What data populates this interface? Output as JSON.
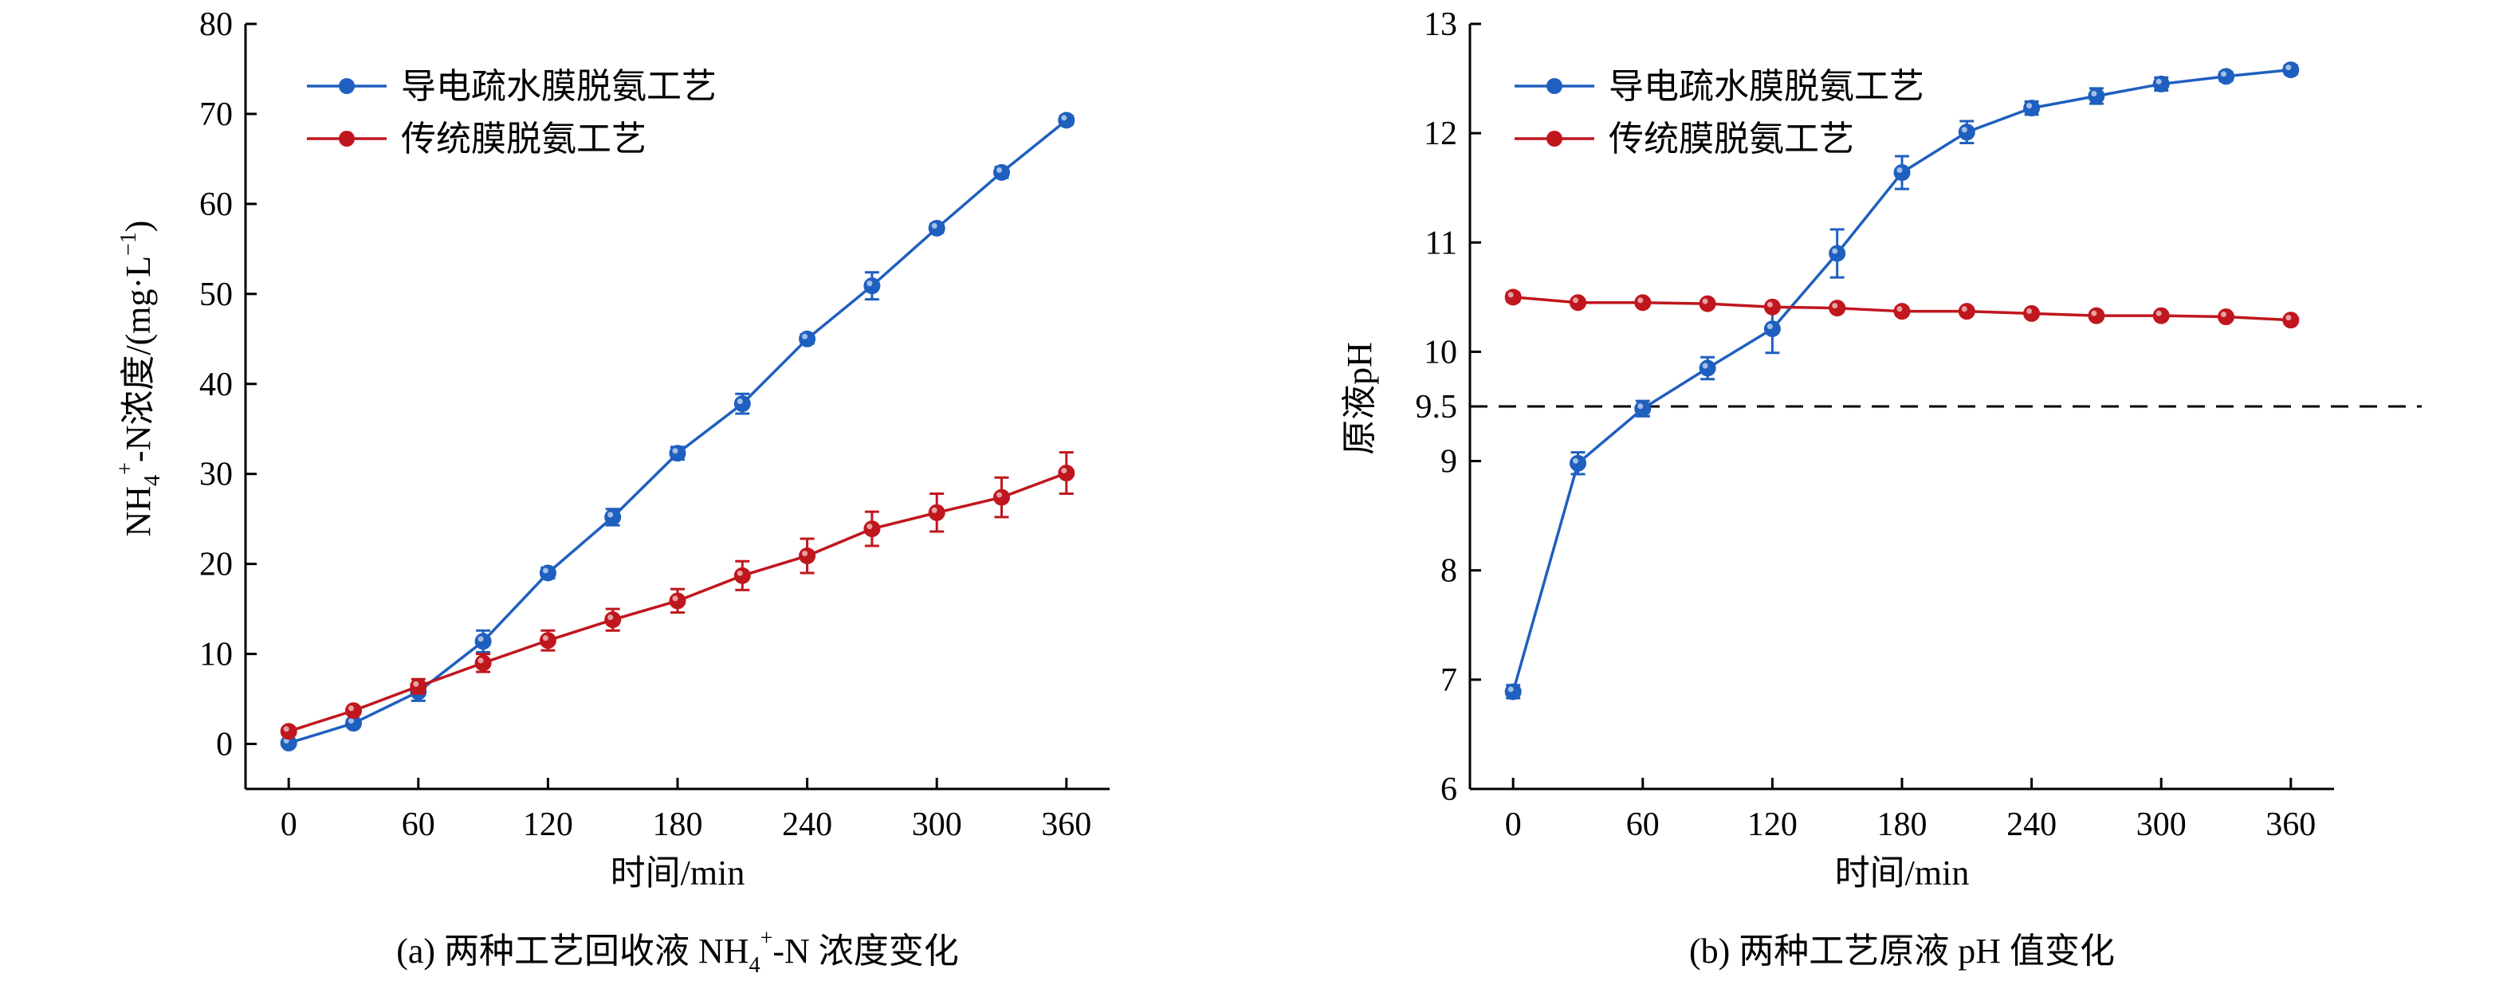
{
  "chart_data": [
    {
      "id": "a",
      "type": "line",
      "caption_prefix": "(a) 两种工艺回收液 NH",
      "caption_sub": "4",
      "caption_sup": "+",
      "caption_suffix": "-N 浓度变化",
      "xlabel": "时间/min",
      "ylabel_main": "NH",
      "ylabel_sub": "4",
      "ylabel_sup": "+",
      "ylabel_tail": "-N浓度/(mg·L",
      "ylabel_unit_sup": "−1",
      "ylabel_end": ")",
      "xlim": [
        -20,
        380
      ],
      "ylim": [
        -5,
        80
      ],
      "xticks": [
        0,
        60,
        120,
        180,
        240,
        300,
        360
      ],
      "xtick_labels": [
        "0",
        "60",
        "120",
        "180",
        "240",
        "300",
        "360"
      ],
      "yticks": [
        0,
        10,
        20,
        30,
        40,
        50,
        60,
        70,
        80
      ],
      "ytick_labels": [
        "0",
        "10",
        "20",
        "30",
        "40",
        "50",
        "60",
        "70",
        "80"
      ],
      "legend_position": "top-left",
      "series": [
        {
          "name": "导电疏水膜脱氨工艺",
          "color": "#1f5fbf",
          "x": [
            0,
            30,
            60,
            90,
            120,
            150,
            180,
            210,
            240,
            270,
            300,
            330,
            360
          ],
          "y": [
            0.1,
            2.3,
            5.8,
            11.4,
            19.0,
            25.2,
            32.3,
            37.8,
            45.0,
            50.9,
            57.3,
            63.5,
            69.3
          ],
          "err": [
            0.3,
            0.4,
            1.0,
            1.2,
            0.6,
            0.9,
            0.7,
            1.1,
            0.5,
            1.5,
            0.5,
            0.6,
            0.5
          ]
        },
        {
          "name": "传统膜脱氨工艺",
          "color": "#c0161e",
          "x": [
            0,
            30,
            60,
            90,
            120,
            150,
            180,
            210,
            240,
            270,
            300,
            330,
            360
          ],
          "y": [
            1.4,
            3.7,
            6.4,
            9.0,
            11.5,
            13.8,
            15.9,
            18.7,
            20.9,
            23.9,
            25.7,
            27.4,
            30.1
          ],
          "err": [
            0.3,
            0.4,
            0.8,
            1.0,
            1.1,
            1.2,
            1.3,
            1.6,
            1.9,
            1.9,
            2.1,
            2.2,
            2.3
          ]
        }
      ]
    },
    {
      "id": "b",
      "type": "line",
      "caption": "(b) 两种工艺原液 pH 值变化",
      "xlabel": "时间/min",
      "ylabel": "原液pH",
      "xlim": [
        -20,
        380
      ],
      "ylim": [
        6,
        13
      ],
      "xticks": [
        0,
        60,
        120,
        180,
        240,
        300,
        360
      ],
      "xtick_labels": [
        "0",
        "60",
        "120",
        "180",
        "240",
        "300",
        "360"
      ],
      "yticks": [
        6,
        7,
        8,
        9,
        9.5,
        10,
        11,
        12,
        13
      ],
      "ytick_labels": [
        "6",
        "7",
        "8",
        "9",
        "9.5",
        "10",
        "11",
        "12",
        "13"
      ],
      "reference_line": {
        "y": 9.5,
        "style": "dashed"
      },
      "legend_position": "top-left",
      "series": [
        {
          "name": "导电疏水膜脱氨工艺",
          "color": "#1f5fbf",
          "x": [
            0,
            30,
            60,
            90,
            120,
            150,
            180,
            210,
            240,
            270,
            300,
            330,
            360
          ],
          "y": [
            6.89,
            8.98,
            9.48,
            9.85,
            10.21,
            10.9,
            11.64,
            12.01,
            12.23,
            12.34,
            12.45,
            12.52,
            12.58
          ],
          "err": [
            0.06,
            0.1,
            0.07,
            0.1,
            0.22,
            0.22,
            0.15,
            0.1,
            0.06,
            0.07,
            0.06,
            0.04,
            0.04
          ]
        },
        {
          "name": "传统膜脱氨工艺",
          "color": "#c0161e",
          "x": [
            0,
            30,
            60,
            90,
            120,
            150,
            180,
            210,
            240,
            270,
            300,
            330,
            360
          ],
          "y": [
            10.5,
            10.45,
            10.45,
            10.44,
            10.41,
            10.4,
            10.37,
            10.37,
            10.35,
            10.33,
            10.33,
            10.32,
            10.29
          ],
          "err": [
            0.04,
            0.03,
            0.03,
            0.03,
            0.03,
            0.03,
            0.03,
            0.03,
            0.03,
            0.03,
            0.03,
            0.03,
            0.03
          ]
        }
      ]
    }
  ]
}
